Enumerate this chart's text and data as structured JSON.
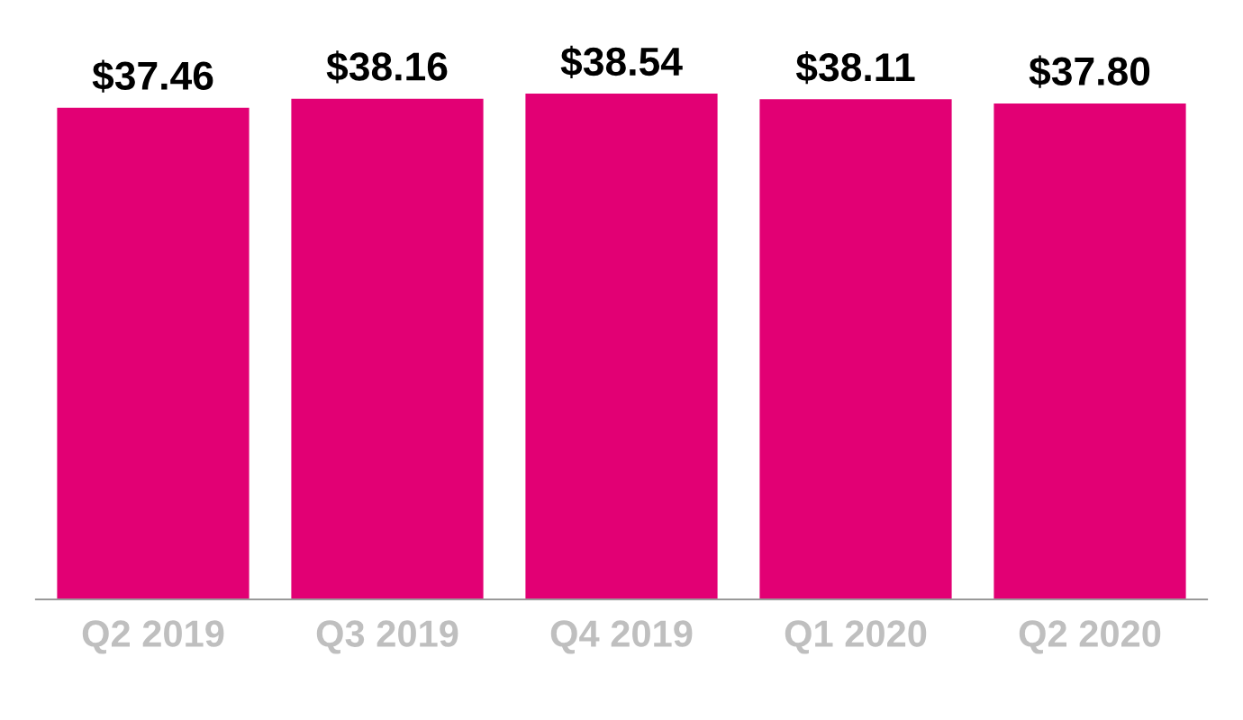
{
  "chart_data": {
    "type": "bar",
    "categories": [
      "Q2 2019",
      "Q3 2019",
      "Q4 2019",
      "Q1 2020",
      "Q2 2020"
    ],
    "values": [
      37.46,
      38.16,
      38.54,
      38.11,
      37.8
    ],
    "value_labels": [
      "$37.46",
      "$38.16",
      "$38.54",
      "$38.11",
      "$37.80"
    ],
    "color": "#e20074",
    "tick_labels": "x",
    "grid": false,
    "legend": false
  }
}
